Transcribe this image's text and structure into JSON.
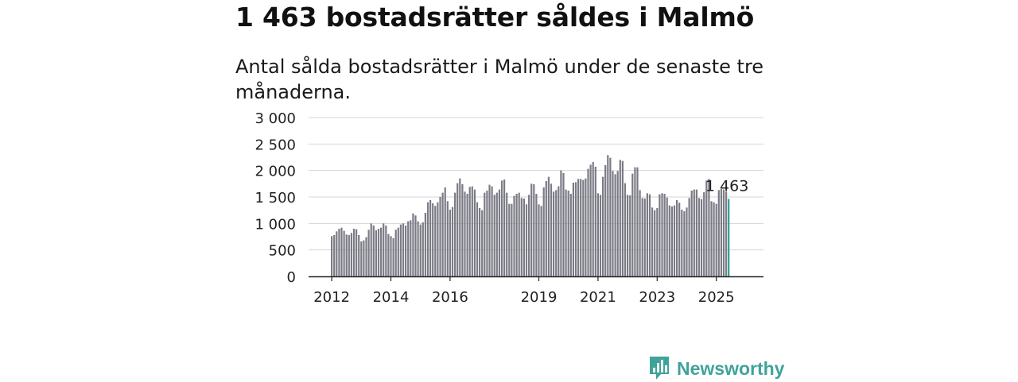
{
  "headline": "1 463 bostadsrätter såldes i Malmö",
  "subtitle": "Antal sålda bostadsrätter i Malmö under de senaste tre månaderna.",
  "brand": {
    "name": "Newsworthy",
    "color": "#3fa39a"
  },
  "colors": {
    "bar": "#7b7b86",
    "highlight": "#2a9d95",
    "grid": "#d6d6d6",
    "axis": "#222222"
  },
  "chart_data": {
    "type": "bar",
    "title": "",
    "xlabel": "",
    "ylabel": "",
    "ylim": [
      0,
      3000
    ],
    "yticks": [
      0,
      500,
      1000,
      1500,
      2000,
      2500,
      3000
    ],
    "ytick_labels": [
      "0",
      "500",
      "1 000",
      "1 500",
      "2 000",
      "2 500",
      "3 000"
    ],
    "xtick_labels": [
      {
        "label": "2012",
        "index": 0
      },
      {
        "label": "2014",
        "index": 24
      },
      {
        "label": "2016",
        "index": 48
      },
      {
        "label": "2019",
        "index": 84
      },
      {
        "label": "2021",
        "index": 108
      },
      {
        "label": "2023",
        "index": 132
      },
      {
        "label": "2025",
        "index": 156
      }
    ],
    "grid": true,
    "highlight_label": "1 463",
    "start": "2012-01",
    "frequency": "monthly",
    "values": [
      760,
      780,
      850,
      900,
      920,
      860,
      790,
      780,
      820,
      900,
      890,
      780,
      660,
      680,
      740,
      880,
      1000,
      960,
      870,
      900,
      920,
      1000,
      960,
      800,
      760,
      720,
      880,
      920,
      980,
      1000,
      960,
      1040,
      1060,
      1190,
      1150,
      1040,
      980,
      1020,
      1200,
      1400,
      1440,
      1380,
      1330,
      1400,
      1500,
      1580,
      1680,
      1420,
      1260,
      1310,
      1580,
      1760,
      1850,
      1740,
      1600,
      1560,
      1690,
      1700,
      1640,
      1400,
      1290,
      1250,
      1580,
      1620,
      1730,
      1700,
      1540,
      1580,
      1640,
      1810,
      1830,
      1580,
      1370,
      1370,
      1520,
      1560,
      1580,
      1480,
      1470,
      1360,
      1540,
      1750,
      1740,
      1560,
      1360,
      1330,
      1680,
      1800,
      1880,
      1750,
      1600,
      1630,
      1700,
      2000,
      1950,
      1640,
      1620,
      1560,
      1770,
      1780,
      1840,
      1840,
      1820,
      1850,
      2030,
      2110,
      2160,
      2070,
      1570,
      1540,
      1880,
      2100,
      2290,
      2240,
      1990,
      1930,
      1990,
      2200,
      2180,
      1760,
      1540,
      1530,
      1940,
      2060,
      2060,
      1630,
      1480,
      1470,
      1570,
      1550,
      1300,
      1250,
      1290,
      1550,
      1570,
      1560,
      1490,
      1340,
      1320,
      1340,
      1440,
      1390,
      1260,
      1230,
      1300,
      1480,
      1620,
      1640,
      1640,
      1480,
      1460,
      1590,
      1810,
      1840,
      1420,
      1400,
      1370,
      1630,
      1650,
      1640,
      1600,
      1463
    ]
  }
}
